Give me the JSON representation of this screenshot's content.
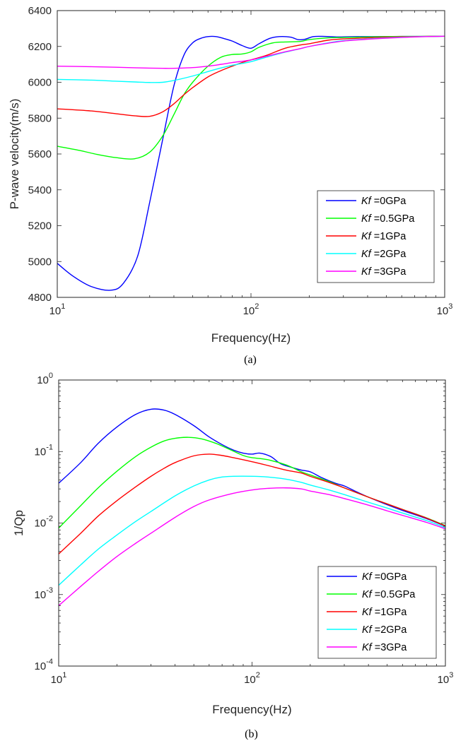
{
  "chart_data": [
    {
      "type": "line",
      "caption": "(a)",
      "xlabel": "Frequency(Hz)",
      "ylabel": "P-wave velocity(m/s)",
      "xscale": "log",
      "yscale": "linear",
      "xlim": [
        10,
        1000
      ],
      "ylim": [
        4800,
        6400
      ],
      "xticks": [
        {
          "value": 10,
          "base": "10",
          "exp": "1"
        },
        {
          "value": 100,
          "base": "10",
          "exp": "2"
        },
        {
          "value": 1000,
          "base": "10",
          "exp": "3"
        }
      ],
      "yticks": [
        {
          "value": 4800,
          "label": "4800"
        },
        {
          "value": 5000,
          "label": "5000"
        },
        {
          "value": 5200,
          "label": "5200"
        },
        {
          "value": 5400,
          "label": "5400"
        },
        {
          "value": 5600,
          "label": "5600"
        },
        {
          "value": 5800,
          "label": "5800"
        },
        {
          "value": 6000,
          "label": "6000"
        },
        {
          "value": 6200,
          "label": "6200"
        },
        {
          "value": 6400,
          "label": "6400"
        }
      ],
      "legend": "bottom-right",
      "series": [
        {
          "prefix": "Kf",
          "suffix": " =0GPa",
          "color": "#0000ff",
          "x": [
            10,
            12,
            15,
            19,
            22,
            26,
            30,
            35,
            40,
            45,
            50,
            55,
            60,
            66,
            72,
            80,
            90,
            100,
            110,
            125,
            140,
            160,
            175,
            190,
            210,
            240,
            280,
            320,
            400,
            500,
            600,
            800,
            1000
          ],
          "y": [
            4990,
            4920,
            4860,
            4840,
            4880,
            5030,
            5330,
            5680,
            5980,
            6150,
            6220,
            6245,
            6255,
            6255,
            6245,
            6230,
            6205,
            6190,
            6215,
            6245,
            6255,
            6252,
            6238,
            6240,
            6255,
            6256,
            6253,
            6254,
            6255,
            6255,
            6256,
            6256,
            6257
          ]
        },
        {
          "prefix": "Kf",
          "suffix": " =0.5GPa",
          "color": "#00ff00",
          "x": [
            10,
            13,
            16,
            20,
            25,
            30,
            35,
            40,
            45,
            50,
            60,
            70,
            80,
            90,
            100,
            110,
            130,
            150,
            180,
            200,
            250,
            300,
            400,
            500,
            700,
            1000
          ],
          "y": [
            5643,
            5620,
            5598,
            5580,
            5573,
            5610,
            5700,
            5820,
            5930,
            6000,
            6090,
            6140,
            6155,
            6158,
            6170,
            6195,
            6220,
            6225,
            6228,
            6238,
            6248,
            6250,
            6253,
            6255,
            6256,
            6257
          ]
        },
        {
          "prefix": "Kf",
          "suffix": " =1GPa",
          "color": "#ff0000",
          "x": [
            10,
            15,
            20,
            25,
            30,
            35,
            40,
            45,
            50,
            60,
            70,
            80,
            90,
            100,
            120,
            150,
            180,
            200,
            250,
            300,
            400,
            500,
            700,
            1000
          ],
          "y": [
            5852,
            5840,
            5825,
            5813,
            5810,
            5835,
            5880,
            5930,
            5970,
            6030,
            6065,
            6090,
            6110,
            6125,
            6150,
            6190,
            6208,
            6215,
            6235,
            6242,
            6248,
            6252,
            6255,
            6257
          ]
        },
        {
          "prefix": "Kf",
          "suffix": " =2GPa",
          "color": "#00ffff",
          "x": [
            10,
            15,
            20,
            25,
            30,
            35,
            40,
            50,
            60,
            70,
            80,
            90,
            100,
            120,
            150,
            180,
            200,
            250,
            300,
            400,
            500,
            700,
            1000
          ],
          "y": [
            6016,
            6012,
            6006,
            6002,
            5999,
            6000,
            6010,
            6035,
            6060,
            6080,
            6095,
            6105,
            6115,
            6140,
            6168,
            6188,
            6200,
            6220,
            6232,
            6242,
            6248,
            6254,
            6257
          ]
        },
        {
          "prefix": "Kf",
          "suffix": " =3GPa",
          "color": "#ff00ff",
          "x": [
            10,
            15,
            20,
            25,
            30,
            35,
            40,
            50,
            60,
            70,
            80,
            100,
            120,
            150,
            180,
            200,
            250,
            300,
            400,
            500,
            700,
            1000
          ],
          "y": [
            6090,
            6087,
            6084,
            6081,
            6079,
            6078,
            6078,
            6082,
            6090,
            6100,
            6110,
            6125,
            6145,
            6170,
            6188,
            6200,
            6218,
            6230,
            6240,
            6246,
            6253,
            6257
          ]
        }
      ]
    },
    {
      "type": "line",
      "caption": "(b)",
      "xlabel": "Frequency(Hz)",
      "ylabel": "1/Qp",
      "xscale": "log",
      "yscale": "log",
      "xlim": [
        10,
        1000
      ],
      "ylim": [
        0.0001,
        1
      ],
      "xticks": [
        {
          "value": 10,
          "base": "10",
          "exp": "1"
        },
        {
          "value": 100,
          "base": "10",
          "exp": "2"
        },
        {
          "value": 1000,
          "base": "10",
          "exp": "3"
        }
      ],
      "yticks": [
        {
          "value": 0.0001,
          "base": "10",
          "exp": "-4"
        },
        {
          "value": 0.001,
          "base": "10",
          "exp": "-3"
        },
        {
          "value": 0.01,
          "base": "10",
          "exp": "-2"
        },
        {
          "value": 0.1,
          "base": "10",
          "exp": "-1"
        },
        {
          "value": 1,
          "base": "10",
          "exp": "0"
        }
      ],
      "legend": "bottom-right",
      "series": [
        {
          "prefix": "Kf",
          "suffix": " =0GPa",
          "color": "#0000ff",
          "x": [
            10,
            13,
            16,
            20,
            25,
            30,
            35,
            40,
            50,
            60,
            70,
            80,
            90,
            100,
            110,
            125,
            140,
            160,
            180,
            200,
            230,
            270,
            300,
            350,
            400,
            500,
            600,
            800,
            1000
          ],
          "y": [
            0.036,
            0.07,
            0.13,
            0.22,
            0.33,
            0.39,
            0.38,
            0.33,
            0.23,
            0.16,
            0.125,
            0.105,
            0.095,
            0.092,
            0.095,
            0.085,
            0.068,
            0.06,
            0.055,
            0.052,
            0.043,
            0.036,
            0.033,
            0.027,
            0.023,
            0.018,
            0.015,
            0.0115,
            0.009
          ]
        },
        {
          "prefix": "Kf",
          "suffix": " =0.5GPa",
          "color": "#00ff00",
          "x": [
            10,
            13,
            16,
            20,
            25,
            30,
            35,
            40,
            47,
            55,
            65,
            75,
            90,
            100,
            120,
            150,
            180,
            200,
            250,
            300,
            400,
            500,
            600,
            800,
            1000
          ],
          "y": [
            0.0085,
            0.0175,
            0.031,
            0.053,
            0.085,
            0.115,
            0.14,
            0.153,
            0.158,
            0.15,
            0.13,
            0.11,
            0.088,
            0.082,
            0.077,
            0.065,
            0.052,
            0.047,
            0.038,
            0.031,
            0.023,
            0.0185,
            0.0155,
            0.0118,
            0.0092
          ]
        },
        {
          "prefix": "Kf",
          "suffix": " =1GPa",
          "color": "#ff0000",
          "x": [
            10,
            13,
            16,
            20,
            25,
            30,
            35,
            40,
            50,
            60,
            70,
            80,
            100,
            120,
            150,
            180,
            200,
            250,
            300,
            400,
            500,
            600,
            800,
            1000
          ],
          "y": [
            0.0037,
            0.0072,
            0.0125,
            0.0205,
            0.032,
            0.045,
            0.058,
            0.07,
            0.087,
            0.092,
            0.088,
            0.082,
            0.072,
            0.064,
            0.055,
            0.05,
            0.045,
            0.037,
            0.031,
            0.023,
            0.0185,
            0.0155,
            0.0117,
            0.0091
          ]
        },
        {
          "prefix": "Kf",
          "suffix": " =2GPa",
          "color": "#00ffff",
          "x": [
            10,
            13,
            16,
            20,
            25,
            30,
            40,
            50,
            60,
            70,
            80,
            100,
            120,
            150,
            180,
            200,
            250,
            300,
            400,
            500,
            600,
            800,
            1000
          ],
          "y": [
            0.00135,
            0.0026,
            0.0043,
            0.0068,
            0.0105,
            0.0145,
            0.024,
            0.033,
            0.04,
            0.044,
            0.045,
            0.045,
            0.044,
            0.041,
            0.037,
            0.034,
            0.029,
            0.025,
            0.0195,
            0.0162,
            0.0138,
            0.0108,
            0.0086
          ]
        },
        {
          "prefix": "Kf",
          "suffix": " =3GPa",
          "color": "#ff00ff",
          "x": [
            10,
            13,
            16,
            20,
            25,
            30,
            40,
            50,
            60,
            80,
            100,
            120,
            150,
            180,
            200,
            250,
            300,
            400,
            500,
            600,
            800,
            1000
          ],
          "y": [
            0.0007,
            0.0013,
            0.0021,
            0.0034,
            0.0052,
            0.0072,
            0.012,
            0.017,
            0.021,
            0.026,
            0.029,
            0.0305,
            0.031,
            0.03,
            0.028,
            0.025,
            0.022,
            0.0178,
            0.0148,
            0.0128,
            0.0102,
            0.0083
          ]
        }
      ]
    }
  ]
}
